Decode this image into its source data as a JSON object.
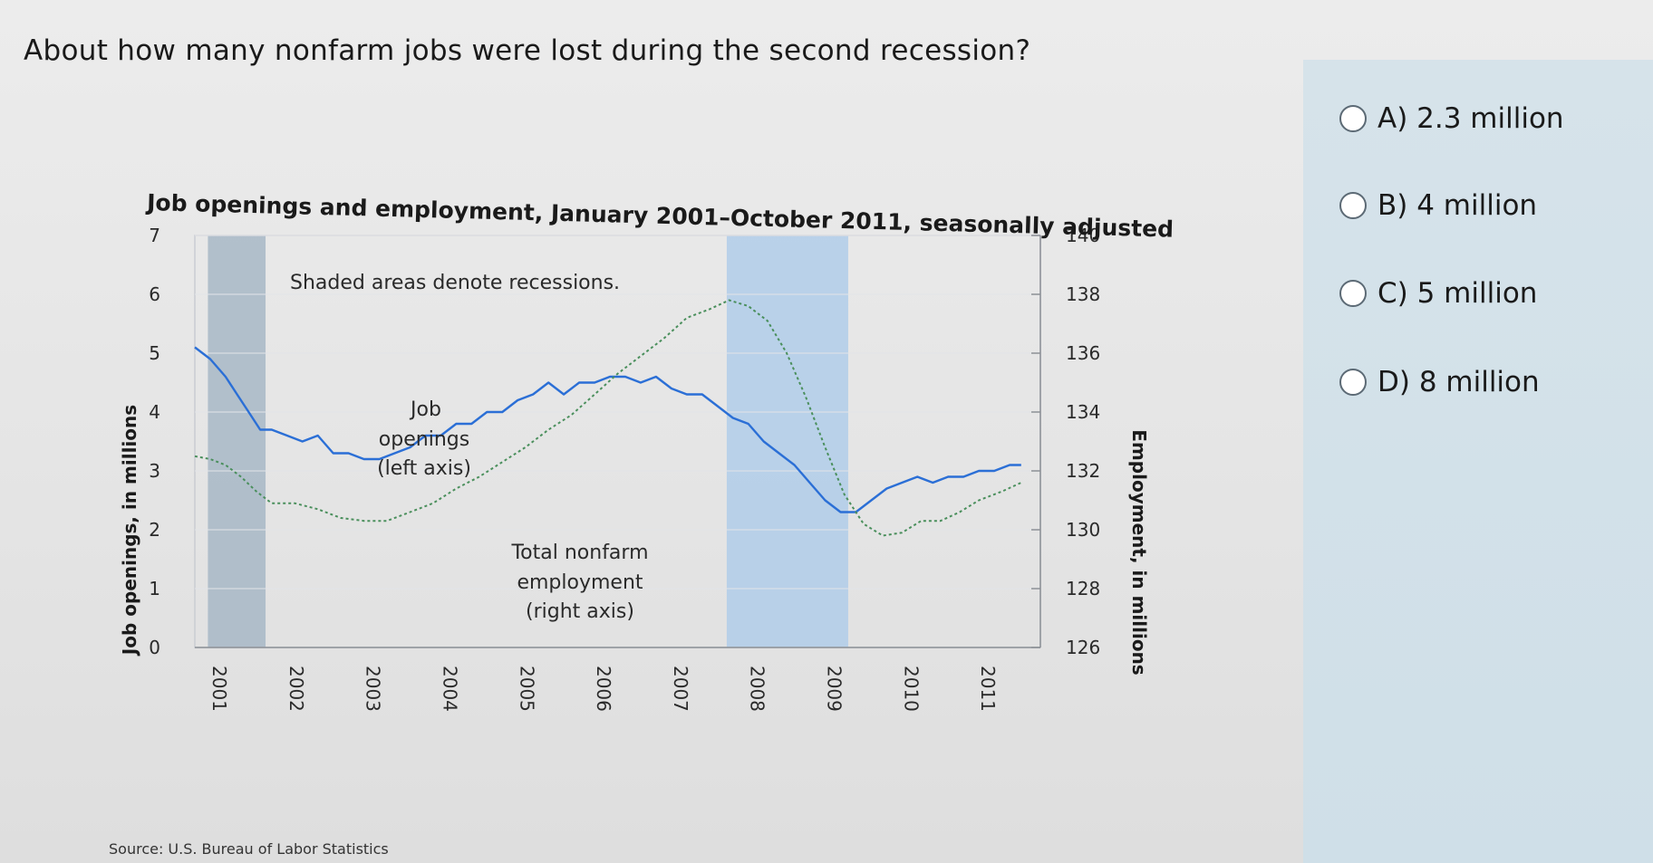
{
  "question": "About how many nonfarm jobs were lost during the second recession?",
  "options": [
    {
      "label": "A) 2.3 million"
    },
    {
      "label": "B) 4 million"
    },
    {
      "label": "C) 5 million"
    },
    {
      "label": "D) 8 million"
    }
  ],
  "chart_data": {
    "type": "line",
    "title": "Job openings and employment, January 2001–October 2011, seasonally adjusted",
    "ylabel": "Job openings, in millions",
    "y2label": "Employment, in millions",
    "ylim": [
      0,
      7
    ],
    "y2lim": [
      126,
      140
    ],
    "yticks": [
      0,
      1,
      2,
      3,
      4,
      5,
      6,
      7
    ],
    "y2ticks": [
      126,
      128,
      130,
      132,
      134,
      136,
      138,
      140
    ],
    "xlim": [
      2001,
      2012.0
    ],
    "xticks": [
      2001,
      2002,
      2003,
      2004,
      2005,
      2006,
      2007,
      2008,
      2009,
      2010,
      2011
    ],
    "recessions": [
      [
        2001.17,
        2001.92
      ],
      [
        2007.92,
        2009.5
      ]
    ],
    "annotations": {
      "shade_note": "Shaded areas denote recessions.",
      "job_openings_label": [
        "Job",
        "openings",
        "(left axis)"
      ],
      "employment_label": [
        "Total nonfarm",
        "employment",
        "(right axis)"
      ]
    },
    "source": "Source: U.S. Bureau of Labor Statistics",
    "series": [
      {
        "name": "Job openings",
        "axis": "left",
        "color": "#2b6fd6",
        "x": [
          2001.0,
          2001.1,
          2001.2,
          2001.4,
          2001.55,
          2001.7,
          2001.85,
          2002.0,
          2002.2,
          2002.4,
          2002.6,
          2002.8,
          2003.0,
          2003.2,
          2003.4,
          2003.6,
          2003.8,
          2004.0,
          2004.2,
          2004.4,
          2004.6,
          2004.8,
          2005.0,
          2005.2,
          2005.4,
          2005.6,
          2005.8,
          2006.0,
          2006.2,
          2006.4,
          2006.6,
          2006.8,
          2007.0,
          2007.2,
          2007.4,
          2007.6,
          2007.8,
          2008.0,
          2008.2,
          2008.4,
          2008.6,
          2008.8,
          2009.0,
          2009.2,
          2009.4,
          2009.6,
          2009.8,
          2010.0,
          2010.2,
          2010.4,
          2010.6,
          2010.8,
          2011.0,
          2011.2,
          2011.4,
          2011.6,
          2011.75
        ],
        "y": [
          5.1,
          5.0,
          4.9,
          4.6,
          4.3,
          4.0,
          3.7,
          3.7,
          3.6,
          3.5,
          3.6,
          3.3,
          3.3,
          3.2,
          3.2,
          3.3,
          3.4,
          3.6,
          3.6,
          3.8,
          3.8,
          4.0,
          4.0,
          4.2,
          4.3,
          4.5,
          4.3,
          4.5,
          4.5,
          4.6,
          4.6,
          4.5,
          4.6,
          4.4,
          4.3,
          4.3,
          4.1,
          3.9,
          3.8,
          3.5,
          3.3,
          3.1,
          2.8,
          2.5,
          2.3,
          2.3,
          2.5,
          2.7,
          2.8,
          2.9,
          2.8,
          2.9,
          2.9,
          3.0,
          3.0,
          3.1,
          3.1
        ]
      },
      {
        "name": "Total nonfarm employment",
        "axis": "right",
        "color": "#4a8f5c",
        "x": [
          2001.0,
          2001.2,
          2001.4,
          2001.6,
          2001.8,
          2002.0,
          2002.3,
          2002.6,
          2002.9,
          2003.2,
          2003.5,
          2003.8,
          2004.1,
          2004.4,
          2004.7,
          2005.0,
          2005.3,
          2005.6,
          2005.9,
          2006.2,
          2006.5,
          2006.8,
          2007.1,
          2007.4,
          2007.7,
          2007.95,
          2008.2,
          2008.45,
          2008.7,
          2008.95,
          2009.2,
          2009.45,
          2009.7,
          2009.95,
          2010.2,
          2010.45,
          2010.7,
          2010.95,
          2011.2,
          2011.5,
          2011.75
        ],
        "y": [
          132.5,
          132.4,
          132.2,
          131.8,
          131.3,
          130.9,
          130.9,
          130.7,
          130.4,
          130.3,
          130.3,
          130.6,
          130.9,
          131.4,
          131.8,
          132.3,
          132.8,
          133.4,
          133.9,
          134.6,
          135.3,
          135.9,
          136.5,
          137.2,
          137.5,
          137.8,
          137.6,
          137.1,
          136.0,
          134.5,
          132.8,
          131.2,
          130.2,
          129.8,
          129.9,
          130.3,
          130.3,
          130.6,
          131.0,
          131.3,
          131.6
        ]
      }
    ]
  }
}
